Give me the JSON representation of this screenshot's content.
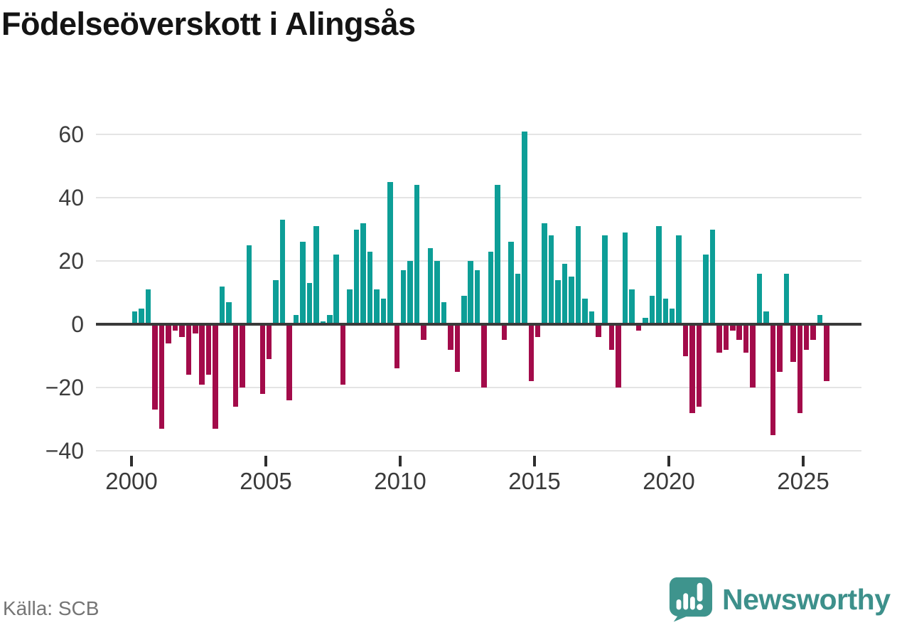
{
  "title": "Födelseöverskott i Alingsås",
  "source": "Källa: SCB",
  "branding": {
    "name": "Newsworthy",
    "icon": "speech-bubble-bar-chart"
  },
  "colors": {
    "positive": "#0d9e97",
    "negative": "#a30b4a",
    "axis": "#3a3a3a",
    "grid": "#e4e4e4",
    "tick_label": "#3a3a3a",
    "source_text": "#757575",
    "brand_teal": "#3d908b"
  },
  "chart_data": {
    "type": "bar",
    "title": "Födelseöverskott i Alingsås",
    "xlabel": "",
    "ylabel": "",
    "period": "quarterly",
    "x_start_year": 2000,
    "values": [
      4,
      5,
      11,
      -27,
      -33,
      -6,
      -2,
      -4,
      -16,
      -3,
      -19,
      -16,
      -33,
      12,
      7,
      -26,
      -20,
      25,
      0,
      -22,
      -11,
      14,
      33,
      -24,
      3,
      26,
      13,
      31,
      1,
      3,
      22,
      -19,
      11,
      30,
      32,
      23,
      11,
      8,
      45,
      -14,
      17,
      20,
      44,
      -5,
      24,
      20,
      7,
      -8,
      -15,
      9,
      20,
      17,
      -20,
      23,
      44,
      -5,
      26,
      16,
      61,
      -18,
      -4,
      32,
      28,
      14,
      19,
      15,
      31,
      8,
      4,
      -4,
      28,
      -8,
      -20,
      29,
      11,
      -2,
      2,
      9,
      31,
      8,
      5,
      28,
      -10,
      -28,
      -26,
      22,
      30,
      -9,
      -8,
      -2,
      -5,
      -9,
      -20,
      16,
      4,
      -35,
      -15,
      16,
      -12,
      -28,
      -8,
      -5,
      3,
      -18
    ],
    "y_ticks": [
      60,
      40,
      20,
      0,
      -20,
      -40
    ],
    "y_tick_labels": [
      "60",
      "40",
      "20",
      "0",
      "−20",
      "−40"
    ],
    "x_tick_years": [
      2000,
      2005,
      2010,
      2015,
      2020,
      2025
    ],
    "x_tick_labels": [
      "2000",
      "2005",
      "2010",
      "2015",
      "2020",
      "2025"
    ],
    "ylim": [
      -40,
      62
    ],
    "grid": "horizontal",
    "legend": "none"
  }
}
